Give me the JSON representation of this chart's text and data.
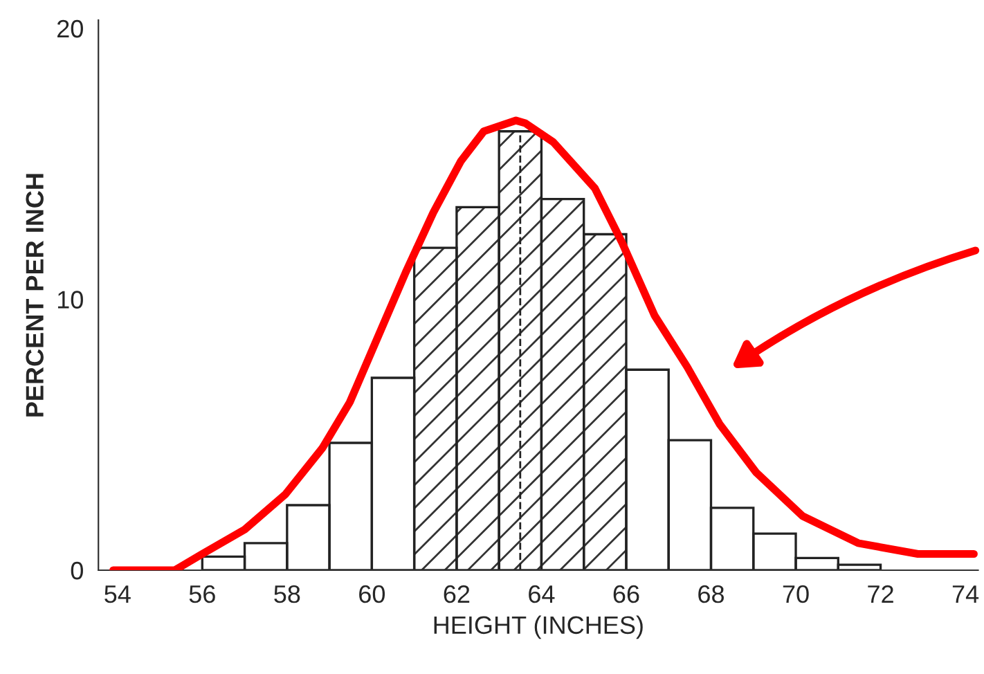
{
  "chart_data": {
    "type": "histogram",
    "xlabel": "HEIGHT (INCHES)",
    "ylabel": "PERCENT PER INCH",
    "bins": [
      56,
      57,
      58,
      59,
      60,
      61,
      62,
      63,
      64,
      65,
      66,
      67,
      68,
      69,
      70,
      71,
      72
    ],
    "values": [
      0.5,
      1.0,
      2.4,
      4.7,
      7.1,
      11.9,
      13.4,
      16.2,
      13.7,
      12.4,
      7.4,
      4.8,
      2.3,
      1.35,
      0.45,
      0.2
    ],
    "series": [
      {
        "type": "line",
        "color": "#ff0000",
        "x": [
          53.9,
          55.35,
          56.0,
          57.0,
          57.96,
          58.83,
          59.48,
          60.14,
          60.8,
          61.45,
          62.1,
          62.64,
          63.4,
          63.62,
          64.28,
          65.26,
          65.9,
          66.67,
          67.44,
          68.2,
          69.07,
          70.16,
          71.47,
          72.88,
          74.2
        ],
        "values": [
          0,
          0,
          0.6,
          1.5,
          2.8,
          4.5,
          6.2,
          8.6,
          11.0,
          13.2,
          15.1,
          16.2,
          16.6,
          16.5,
          15.8,
          14.1,
          12.1,
          9.4,
          7.5,
          5.4,
          3.6,
          2.0,
          1.0,
          0.6,
          0.6
        ]
      }
    ],
    "bands": [
      {
        "axis": "x",
        "from": 61,
        "to": 66
      }
    ],
    "ref_lines": [
      {
        "axis": "x",
        "value": 63.5,
        "line_style": "dashed"
      }
    ],
    "xlim": [
      53.55,
      74.3
    ],
    "ylim": [
      0,
      20.3
    ],
    "xticks": [
      54,
      56,
      58,
      60,
      62,
      64,
      66,
      68,
      70,
      72,
      74
    ],
    "yticks": [
      0,
      10,
      20
    ],
    "grid": false,
    "legend": false
  }
}
